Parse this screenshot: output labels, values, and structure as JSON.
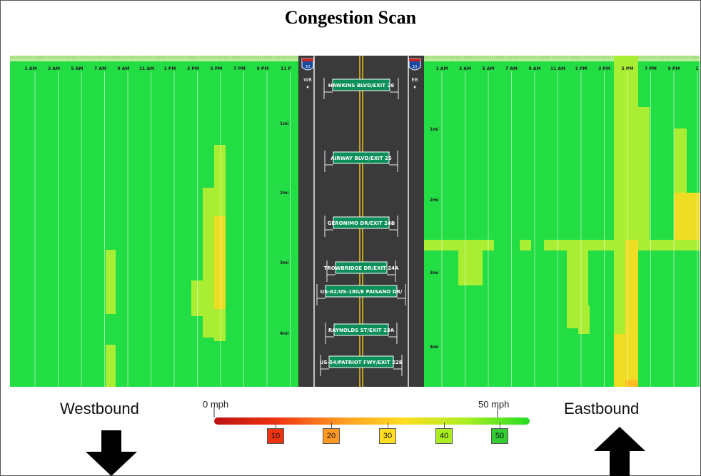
{
  "title": "Congestion Scan",
  "westbound_label": "Westbound",
  "eastbound_label": "Eastbound",
  "direction_badges": {
    "wb": "WB",
    "eb": "EB"
  },
  "shield_label": "10",
  "time_labels": [
    "1 AM",
    "3 AM",
    "5 AM",
    "7 AM",
    "9 AM",
    "11 AM",
    "1 PM",
    "3 PM",
    "5 PM",
    "7 PM",
    "9 PM",
    "11 P"
  ],
  "time_labels_eb": [
    "1 AM",
    "3 AM",
    "5 AM",
    "7 AM",
    "9 AM",
    "11 AM",
    "1 PM",
    "3 PM",
    "5 PM",
    "7 PM",
    "9 PM",
    "1"
  ],
  "mile_labels": [
    "1mi",
    "2mi",
    "3mi",
    "4mi"
  ],
  "exits": [
    "HAWKINS BLVD/EXIT 26",
    "AIRWAY BLVD/EXIT 25",
    "GERONIMO DR/EXIT 24B",
    "TROWBRIDGE DR/EXIT 24A",
    "US-62/US-180/E PAISANO DR/",
    "RAYNOLDS ST/EXIT 23A",
    "US-54/PATRIOT FWY/EXIT 22B"
  ],
  "legend": {
    "min_label": "0 mph",
    "max_label": "50 mph",
    "ticks": [
      {
        "label": "10",
        "color": "#ee3311"
      },
      {
        "label": "20",
        "color": "#ff9922"
      },
      {
        "label": "30",
        "color": "#ffdd22"
      },
      {
        "label": "40",
        "color": "#aaee22"
      },
      {
        "label": "50",
        "color": "#33cc33"
      }
    ]
  },
  "colors": {
    "free_flow": "#22dd44",
    "light": "#aaee33",
    "moderate": "#eedd22",
    "slow": "#ffbb22",
    "road": "#3a3a3a",
    "sign": "#0a8f5a"
  }
}
